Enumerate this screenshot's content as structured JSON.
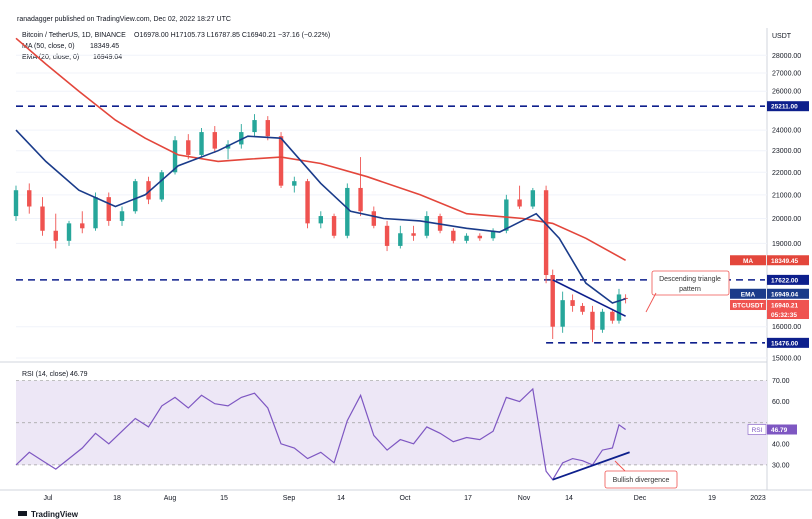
{
  "header": {
    "publisher": "ranadagger published on TradingView.com, Dec 02, 2022 18:27 UTC",
    "symbol_line": "Bitcoin / TetherUS, 1D, BINANCE",
    "ohlc": "O16978.00  H17105.73  L16787.85  C16940.21  −37.16 (−0.22%)",
    "ma_label": "MA (50, close, 0)",
    "ma_value": "18349.45",
    "ema_label": "EMA (20, close, 0)",
    "ema_value": "16949.04",
    "rsi_label": "RSI (14, close)",
    "rsi_value": "46.79",
    "currency": "USDT"
  },
  "footer": {
    "brand": "TradingView"
  },
  "colors": {
    "up": "#26a69a",
    "down": "#ef5350",
    "ma": "#e3463b",
    "ema": "#1a3b8a",
    "rsi": "#7e57c2",
    "dash": "#0d1f8c",
    "rsi_band": "#ede7f6"
  },
  "annotations": {
    "triangle": [
      "Descending triangle",
      "pattern"
    ],
    "divergence": "Bullish divergence"
  },
  "chart_data": [
    {
      "type": "candlestick",
      "yscale": "log",
      "ylim": [
        15000,
        29500
      ],
      "y_ticks": [
        "15000.00",
        "16000.00",
        "19000.00",
        "20000.00",
        "21000.00",
        "22000.00",
        "23000.00",
        "24000.00",
        "26000.00",
        "27000.00",
        "28000.00"
      ],
      "x_ticks": [
        "Jul",
        "18",
        "Aug",
        "15",
        "Sep",
        "14",
        "Oct",
        "17",
        "Nov",
        "14",
        "Dec",
        "19",
        "2023"
      ],
      "horizontal_levels": [
        {
          "value": 25211.0,
          "label": "25211.00"
        },
        {
          "value": 17622.0,
          "label": "17622.00"
        },
        {
          "value": 15476.0,
          "label": "15476.00"
        }
      ],
      "price_badges": [
        {
          "name": "MA",
          "value": "18349.45"
        },
        {
          "name": "EMA",
          "value": "16949.04"
        },
        {
          "name": "BTCUSDT",
          "value": "16940.21",
          "countdown": "05:32:35"
        }
      ],
      "ma50_path": [
        [
          "2022-06-01",
          29000
        ],
        [
          "2022-06-10",
          27500
        ],
        [
          "2022-06-20",
          26000
        ],
        [
          "2022-07-01",
          24500
        ],
        [
          "2022-07-10",
          23600
        ],
        [
          "2022-07-20",
          22800
        ],
        [
          "2022-08-01",
          22500
        ],
        [
          "2022-08-10",
          22600
        ],
        [
          "2022-08-20",
          22700
        ],
        [
          "2022-09-01",
          22400
        ],
        [
          "2022-09-15",
          21800
        ],
        [
          "2022-10-01",
          21000
        ],
        [
          "2022-10-15",
          20200
        ],
        [
          "2022-11-01",
          20000
        ],
        [
          "2022-11-10",
          19800
        ],
        [
          "2022-11-20",
          19200
        ],
        [
          "2022-12-02",
          18349.45
        ]
      ],
      "ema20_path": [
        [
          "2022-06-01",
          24000
        ],
        [
          "2022-06-10",
          22500
        ],
        [
          "2022-06-20",
          21200
        ],
        [
          "2022-07-01",
          20500
        ],
        [
          "2022-07-10",
          21000
        ],
        [
          "2022-07-20",
          22300
        ],
        [
          "2022-08-01",
          23000
        ],
        [
          "2022-08-10",
          23700
        ],
        [
          "2022-08-20",
          23600
        ],
        [
          "2022-09-01",
          21500
        ],
        [
          "2022-09-10",
          20300
        ],
        [
          "2022-09-20",
          20000
        ],
        [
          "2022-10-01",
          19900
        ],
        [
          "2022-10-15",
          19600
        ],
        [
          "2022-10-25",
          19450
        ],
        [
          "2022-11-05",
          20200
        ],
        [
          "2022-11-12",
          19200
        ],
        [
          "2022-11-20",
          17500
        ],
        [
          "2022-11-28",
          16800
        ],
        [
          "2022-12-02",
          16949.04
        ]
      ],
      "candles": [
        [
          "2022-06-01",
          20100,
          21400,
          19900,
          21200
        ],
        [
          "2022-06-05",
          21200,
          21500,
          20200,
          20500
        ],
        [
          "2022-06-09",
          20500,
          20900,
          19300,
          19500
        ],
        [
          "2022-06-13",
          19500,
          20200,
          18800,
          19100
        ],
        [
          "2022-06-17",
          19100,
          19900,
          18900,
          19800
        ],
        [
          "2022-06-21",
          19800,
          20300,
          19400,
          19600
        ],
        [
          "2022-06-25",
          19600,
          21100,
          19500,
          20900
        ],
        [
          "2022-06-29",
          20900,
          21100,
          19700,
          19900
        ],
        [
          "2022-07-03",
          19900,
          20500,
          19700,
          20300
        ],
        [
          "2022-07-07",
          20300,
          21700,
          20200,
          21600
        ],
        [
          "2022-07-11",
          21600,
          21800,
          20600,
          20800
        ],
        [
          "2022-07-15",
          20800,
          22100,
          20700,
          22000
        ],
        [
          "2022-07-19",
          22000,
          23700,
          21900,
          23500
        ],
        [
          "2022-07-23",
          23500,
          23800,
          22600,
          22800
        ],
        [
          "2022-07-27",
          22800,
          24100,
          22700,
          23900
        ],
        [
          "2022-07-31",
          23900,
          24200,
          22900,
          23100
        ],
        [
          "2022-08-04",
          23100,
          23500,
          22600,
          23300
        ],
        [
          "2022-08-08",
          23300,
          24300,
          23100,
          23900
        ],
        [
          "2022-08-12",
          23900,
          24800,
          23700,
          24500
        ],
        [
          "2022-08-16",
          24500,
          24700,
          23500,
          23700
        ],
        [
          "2022-08-20",
          23700,
          23900,
          21300,
          21400
        ],
        [
          "2022-08-24",
          21400,
          21800,
          21100,
          21600
        ],
        [
          "2022-08-28",
          21600,
          21700,
          19600,
          19800
        ],
        [
          "2022-09-01",
          19800,
          20300,
          19600,
          20100
        ],
        [
          "2022-09-05",
          20100,
          20200,
          19200,
          19300
        ],
        [
          "2022-09-09",
          19300,
          21500,
          19200,
          21300
        ],
        [
          "2022-09-13",
          21300,
          22700,
          20100,
          20300
        ],
        [
          "2022-09-17",
          20300,
          20500,
          19600,
          19700
        ],
        [
          "2022-09-21",
          19700,
          19900,
          18700,
          18900
        ],
        [
          "2022-09-25",
          18900,
          19700,
          18800,
          19400
        ],
        [
          "2022-09-29",
          19400,
          19700,
          19100,
          19300
        ],
        [
          "2022-10-03",
          19300,
          20300,
          19200,
          20100
        ],
        [
          "2022-10-07",
          20100,
          20200,
          19400,
          19500
        ],
        [
          "2022-10-11",
          19500,
          19600,
          19000,
          19100
        ],
        [
          "2022-10-15",
          19100,
          19400,
          19000,
          19300
        ],
        [
          "2022-10-19",
          19300,
          19400,
          19100,
          19200
        ],
        [
          "2022-10-23",
          19200,
          19600,
          19100,
          19500
        ],
        [
          "2022-10-27",
          19500,
          21000,
          19400,
          20800
        ],
        [
          "2022-10-31",
          20800,
          21400,
          20400,
          20500
        ],
        [
          "2022-11-04",
          20500,
          21300,
          20400,
          21200
        ],
        [
          "2022-11-08",
          21200,
          21400,
          17500,
          17800
        ],
        [
          "2022-11-10",
          17800,
          18000,
          15600,
          16000
        ],
        [
          "2022-11-13",
          16000,
          17200,
          15800,
          16900
        ],
        [
          "2022-11-16",
          16900,
          17100,
          16500,
          16700
        ],
        [
          "2022-11-19",
          16700,
          16800,
          16400,
          16500
        ],
        [
          "2022-11-22",
          16500,
          16700,
          15500,
          15900
        ],
        [
          "2022-11-25",
          15900,
          16600,
          15800,
          16500
        ],
        [
          "2022-11-28",
          16500,
          16600,
          16100,
          16200
        ],
        [
          "2022-11-30",
          16200,
          17300,
          16100,
          17100
        ],
        [
          "2022-12-02",
          16978,
          17105.73,
          16787.85,
          16940.21
        ]
      ]
    },
    {
      "type": "line",
      "name": "RSI (14, close)",
      "ylim": [
        20,
        75
      ],
      "y_ticks": [
        "30.00",
        "40.00",
        "60.00",
        "70.00"
      ],
      "band": [
        30,
        70
      ],
      "mid": 50,
      "current": "46.79",
      "values": [
        [
          "2022-06-01",
          30
        ],
        [
          "2022-06-05",
          36
        ],
        [
          "2022-06-09",
          32
        ],
        [
          "2022-06-13",
          28
        ],
        [
          "2022-06-17",
          33
        ],
        [
          "2022-06-21",
          38
        ],
        [
          "2022-06-25",
          45
        ],
        [
          "2022-06-29",
          40
        ],
        [
          "2022-07-03",
          46
        ],
        [
          "2022-07-07",
          52
        ],
        [
          "2022-07-11",
          48
        ],
        [
          "2022-07-15",
          58
        ],
        [
          "2022-07-19",
          62
        ],
        [
          "2022-07-23",
          57
        ],
        [
          "2022-07-27",
          63
        ],
        [
          "2022-07-31",
          59
        ],
        [
          "2022-08-04",
          58
        ],
        [
          "2022-08-08",
          62
        ],
        [
          "2022-08-12",
          64
        ],
        [
          "2022-08-16",
          57
        ],
        [
          "2022-08-20",
          40
        ],
        [
          "2022-08-24",
          38
        ],
        [
          "2022-08-28",
          33
        ],
        [
          "2022-09-01",
          36
        ],
        [
          "2022-09-05",
          31
        ],
        [
          "2022-09-09",
          51
        ],
        [
          "2022-09-13",
          63
        ],
        [
          "2022-09-17",
          44
        ],
        [
          "2022-09-21",
          37
        ],
        [
          "2022-09-25",
          42
        ],
        [
          "2022-09-29",
          40
        ],
        [
          "2022-10-03",
          48
        ],
        [
          "2022-10-07",
          45
        ],
        [
          "2022-10-11",
          41
        ],
        [
          "2022-10-15",
          43
        ],
        [
          "2022-10-19",
          42
        ],
        [
          "2022-10-23",
          46
        ],
        [
          "2022-10-27",
          62
        ],
        [
          "2022-10-31",
          60
        ],
        [
          "2022-11-04",
          66
        ],
        [
          "2022-11-08",
          27
        ],
        [
          "2022-11-10",
          23
        ],
        [
          "2022-11-13",
          31
        ],
        [
          "2022-11-16",
          33
        ],
        [
          "2022-11-19",
          32
        ],
        [
          "2022-11-22",
          30
        ],
        [
          "2022-11-25",
          37
        ],
        [
          "2022-11-28",
          38
        ],
        [
          "2022-11-30",
          49
        ],
        [
          "2022-12-02",
          46.79
        ]
      ]
    }
  ]
}
